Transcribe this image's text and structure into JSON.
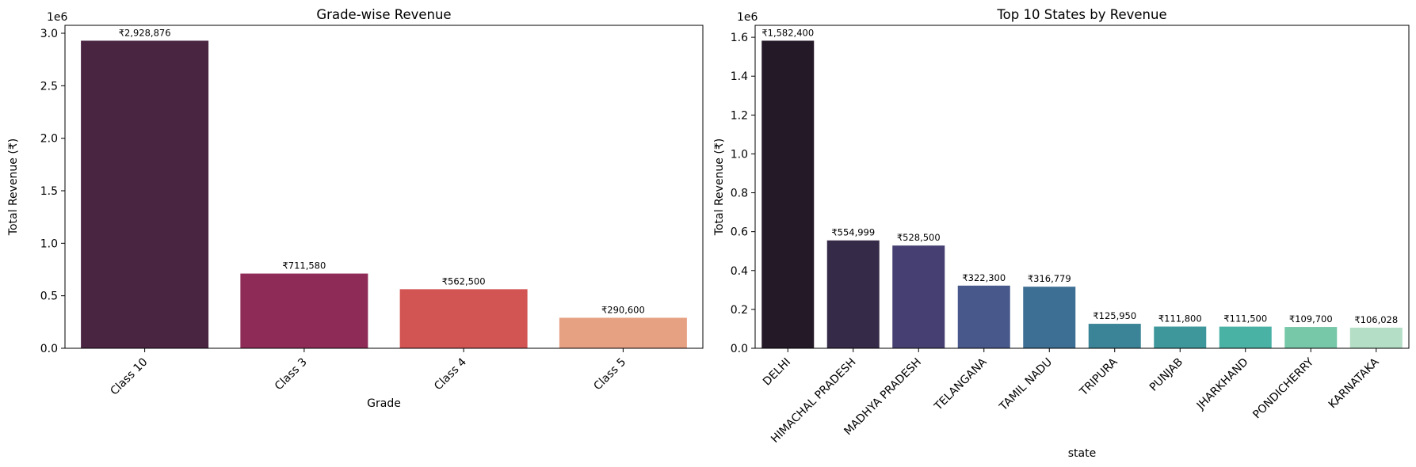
{
  "chart_data": [
    {
      "type": "bar",
      "title": "Grade-wise Revenue",
      "xlabel": "Grade",
      "ylabel": "Total Revenue (₹)",
      "y_offset_label": "1e6",
      "ylim": [
        0,
        3075320
      ],
      "yticks": [
        0,
        500000,
        1000000,
        1500000,
        2000000,
        2500000,
        3000000
      ],
      "ytick_labels": [
        "0.0",
        "0.5",
        "1.0",
        "1.5",
        "2.0",
        "2.5",
        "3.0"
      ],
      "x_tick_rotation": 45,
      "categories": [
        "Class 10",
        "Class 3",
        "Class 4",
        "Class 5"
      ],
      "values": [
        2928876,
        711580,
        562500,
        290600
      ],
      "data_labels": [
        "₹2,928,876",
        "₹711,580",
        "₹562,500",
        "₹290,600"
      ],
      "colors": [
        "#4a2542",
        "#8f2b57",
        "#d25453",
        "#e6a183"
      ]
    },
    {
      "type": "bar",
      "title": "Top 10 States by Revenue",
      "xlabel": "state",
      "ylabel": "Total Revenue (₹)",
      "y_offset_label": "1e6",
      "ylim": [
        0,
        1661520
      ],
      "yticks": [
        0,
        200000,
        400000,
        600000,
        800000,
        1000000,
        1200000,
        1400000,
        1600000
      ],
      "ytick_labels": [
        "0.0",
        "0.2",
        "0.4",
        "0.6",
        "0.8",
        "1.0",
        "1.2",
        "1.4",
        "1.6"
      ],
      "x_tick_rotation": 45,
      "categories": [
        "DELHI",
        "HIMACHAL PRADESH",
        "MADHYA PRADESH",
        "TELANGANA",
        "TAMIL NADU",
        "TRIPURA",
        "PUNJAB",
        "JHARKHAND",
        "PONDICHERRY",
        "KARNATAKA"
      ],
      "values": [
        1582400,
        554999,
        528500,
        322300,
        316779,
        125950,
        111800,
        111500,
        109700,
        106028
      ],
      "data_labels": [
        "₹1,582,400",
        "₹554,999",
        "₹528,500",
        "₹322,300",
        "₹316,779",
        "₹125,950",
        "₹111,800",
        "₹111,500",
        "₹109,700",
        "₹106,028"
      ],
      "colors": [
        "#241927",
        "#352b48",
        "#463f72",
        "#49588b",
        "#3d6e93",
        "#3b8497",
        "#3e989b",
        "#4ab1a5",
        "#77c7a9",
        "#b4dec5"
      ]
    }
  ]
}
